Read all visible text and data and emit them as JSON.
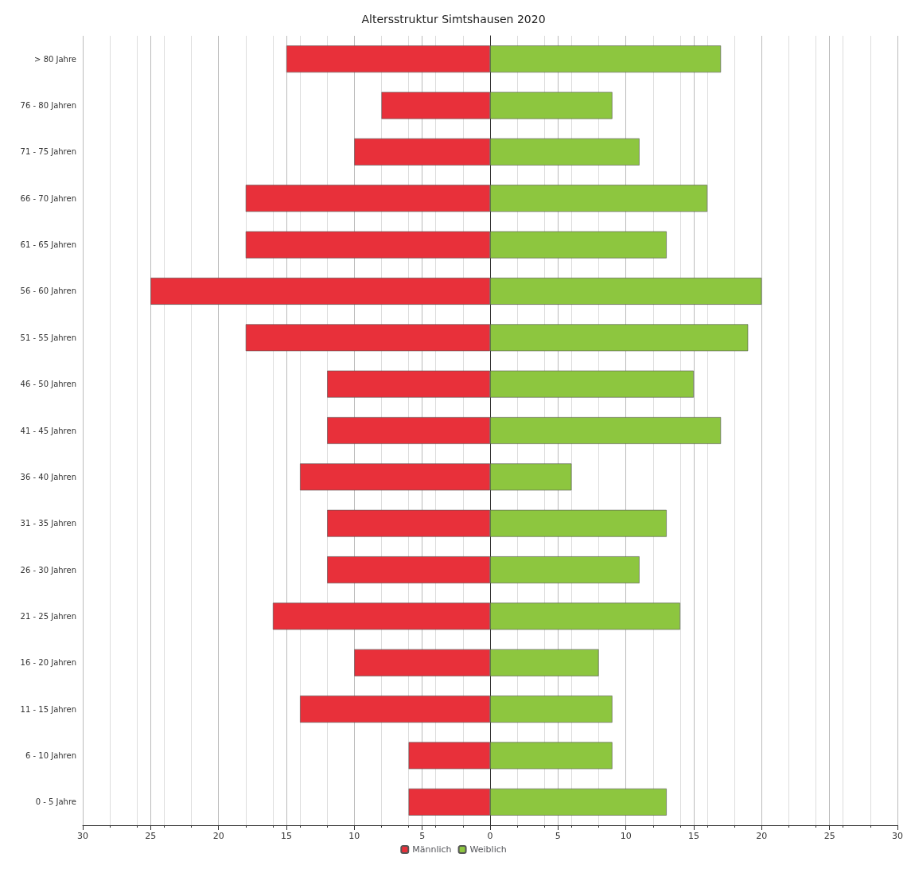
{
  "chart_data": {
    "type": "bar",
    "orientation": "horizontal",
    "stacked": true,
    "title": "Altersstruktur Simtshausen 2020",
    "categories": [
      "> 80 Jahre",
      "76 - 80 Jahren",
      "71 - 75 Jahren",
      "66 - 70 Jahren",
      "61 - 65 Jahren",
      "56 - 60 Jahren",
      "51 - 55 Jahren",
      "46 - 50 Jahren",
      "41 - 45 Jahren",
      "36 - 40 Jahren",
      "31 - 35 Jahren",
      "26 - 30 Jahren",
      "21 - 25 Jahren",
      "16 - 20 Jahren",
      "11 - 15 Jahren",
      "6 - 10 Jahren",
      "0 - 5 Jahre"
    ],
    "series": [
      {
        "name": "Männlich",
        "color": "#e8303a",
        "values": [
          -15,
          -8,
          -10,
          -18,
          -18,
          -25,
          -18,
          -12,
          -12,
          -14,
          -12,
          -12,
          -16,
          -10,
          -14,
          -6,
          -6
        ]
      },
      {
        "name": "Weiblich",
        "color": "#8dc63f",
        "values": [
          17,
          9,
          11,
          16,
          13,
          20,
          19,
          15,
          17,
          6,
          13,
          11,
          14,
          8,
          9,
          9,
          13
        ]
      }
    ],
    "xlim": [
      -30,
      30
    ],
    "xticks": [
      {
        "value": -30,
        "label": "30"
      },
      {
        "value": -25,
        "label": "25"
      },
      {
        "value": -20,
        "label": "20"
      },
      {
        "value": -15,
        "label": "15"
      },
      {
        "value": -10,
        "label": "10"
      },
      {
        "value": -5,
        "label": "5"
      },
      0,
      5,
      10,
      15,
      20,
      25,
      30
    ],
    "grid": "x",
    "legend": "bottom"
  }
}
